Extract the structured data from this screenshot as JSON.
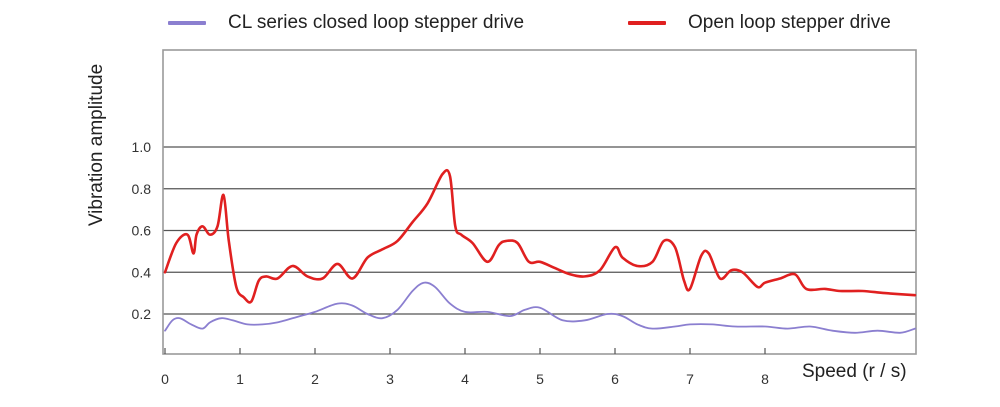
{
  "chart_data": {
    "type": "line",
    "xlabel": "Speed (r / s)",
    "ylabel": "Vibration amplitude",
    "xlim": [
      0,
      10
    ],
    "ylim": [
      0,
      1.6
    ],
    "x_ticks": [
      "0",
      "1",
      "2",
      "3",
      "4",
      "5",
      "6",
      "7",
      "8"
    ],
    "y_ticks": [
      "0.2",
      "0.4",
      "0.6",
      "0.8",
      "1.0"
    ],
    "grid": "horizontal",
    "legend_position": "top",
    "series": [
      {
        "name": "CL series closed loop stepper drive",
        "color": "#8b7fd0",
        "x": [
          0,
          0.1,
          0.2,
          0.35,
          0.5,
          0.6,
          0.75,
          0.9,
          1.1,
          1.3,
          1.5,
          1.8,
          2.0,
          2.3,
          2.5,
          2.7,
          2.9,
          3.1,
          3.3,
          3.45,
          3.6,
          3.8,
          4.0,
          4.3,
          4.6,
          4.8,
          5.0,
          5.3,
          5.6,
          5.9,
          6.1,
          6.3,
          6.5,
          6.8,
          7.0,
          7.3,
          7.6,
          8.0,
          8.3,
          8.6,
          8.9,
          9.2,
          9.5,
          9.8,
          10.0
        ],
        "y": [
          0.12,
          0.17,
          0.18,
          0.15,
          0.13,
          0.16,
          0.18,
          0.17,
          0.15,
          0.15,
          0.16,
          0.19,
          0.21,
          0.25,
          0.24,
          0.2,
          0.18,
          0.22,
          0.31,
          0.35,
          0.33,
          0.25,
          0.21,
          0.21,
          0.19,
          0.22,
          0.23,
          0.17,
          0.17,
          0.2,
          0.19,
          0.15,
          0.13,
          0.14,
          0.15,
          0.15,
          0.14,
          0.14,
          0.13,
          0.14,
          0.12,
          0.11,
          0.12,
          0.11,
          0.13
        ]
      },
      {
        "name": "Open loop stepper drive",
        "color": "#e02020",
        "x": [
          0,
          0.15,
          0.3,
          0.38,
          0.42,
          0.5,
          0.6,
          0.7,
          0.78,
          0.85,
          0.95,
          1.05,
          1.15,
          1.25,
          1.35,
          1.5,
          1.7,
          1.9,
          2.1,
          2.3,
          2.5,
          2.7,
          2.9,
          3.1,
          3.3,
          3.5,
          3.7,
          3.8,
          3.87,
          3.95,
          4.1,
          4.3,
          4.45,
          4.55,
          4.7,
          4.85,
          5.0,
          5.2,
          5.4,
          5.6,
          5.8,
          6.0,
          6.1,
          6.3,
          6.5,
          6.65,
          6.8,
          6.92,
          7.0,
          7.15,
          7.25,
          7.4,
          7.55,
          7.7,
          7.9,
          8.0,
          8.2,
          8.4,
          8.55,
          8.8,
          9.0,
          9.3,
          9.6,
          10.0
        ],
        "y": [
          0.4,
          0.54,
          0.58,
          0.49,
          0.58,
          0.62,
          0.58,
          0.62,
          0.77,
          0.55,
          0.33,
          0.28,
          0.26,
          0.36,
          0.38,
          0.37,
          0.43,
          0.38,
          0.37,
          0.44,
          0.37,
          0.47,
          0.51,
          0.55,
          0.64,
          0.73,
          0.87,
          0.86,
          0.62,
          0.58,
          0.54,
          0.45,
          0.53,
          0.55,
          0.54,
          0.45,
          0.45,
          0.42,
          0.39,
          0.38,
          0.41,
          0.52,
          0.47,
          0.43,
          0.45,
          0.55,
          0.52,
          0.36,
          0.32,
          0.48,
          0.49,
          0.37,
          0.41,
          0.4,
          0.33,
          0.35,
          0.37,
          0.39,
          0.32,
          0.32,
          0.31,
          0.31,
          0.3,
          0.29
        ]
      }
    ]
  }
}
